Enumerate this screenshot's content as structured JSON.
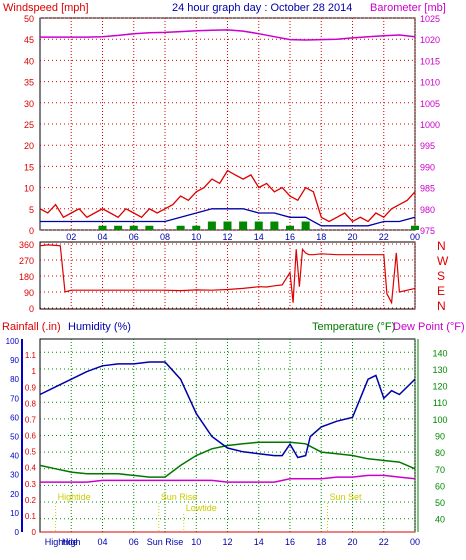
{
  "header": {
    "left_label": "Windspeed [mph]",
    "title": "24 hour graph day : October 28 2014",
    "right_label": "Barometer [mb]"
  },
  "colors": {
    "wind": "#dd0000",
    "wind_avg": "#0000aa",
    "wind_green": "#008800",
    "barometer": "#cc00cc",
    "direction": "#dd0000",
    "humidity": "#0000aa",
    "temperature": "#007700",
    "dewpoint": "#cc00cc",
    "rain": "#dd0000",
    "events": "#cccc00",
    "grid_time": "#dd0000",
    "grid_green": "#008800",
    "axis_blue": "#0000cc",
    "axis_green": "#008800"
  },
  "lower_header": {
    "rainfall_label": "Rainfall (.in)",
    "humidity_label": "Humidity (%)",
    "temperature_label": "Temperature (°F)",
    "dewpoint_label": "Dew Point (°F)"
  },
  "chart_data": [
    {
      "id": "wind",
      "type": "area",
      "x_ticks": [
        "02",
        "04",
        "06",
        "08",
        "10",
        "12",
        "14",
        "16",
        "18",
        "20",
        "22",
        "00"
      ],
      "x_tick_hours": [
        2,
        4,
        6,
        8,
        10,
        12,
        14,
        16,
        18,
        20,
        22,
        24
      ],
      "ylabel": "Windspeed [mph]",
      "ylim": [
        0,
        50
      ],
      "y_ticks": [
        "0",
        "5",
        "10",
        "15",
        "20",
        "25",
        "30",
        "35",
        "40",
        "45",
        "50"
      ],
      "y_tick_values": [
        0,
        5,
        10,
        15,
        20,
        25,
        30,
        35,
        40,
        45,
        50
      ],
      "y2label": "Barometer [mb]",
      "y2lim": [
        975,
        1025
      ],
      "y2_ticks": [
        "975",
        "980",
        "985",
        "990",
        "995",
        "1000",
        "1005",
        "1010",
        "1015",
        "1020",
        "1025"
      ],
      "y2_tick_values": [
        975,
        980,
        985,
        990,
        995,
        1000,
        1005,
        1010,
        1015,
        1020,
        1025
      ],
      "series": [
        {
          "key": "gust",
          "x": [
            0,
            0.5,
            1,
            1.5,
            2,
            2.5,
            3,
            3.5,
            4,
            4.5,
            5,
            5.5,
            6,
            6.5,
            7,
            7.5,
            8,
            8.5,
            9,
            9.5,
            10,
            10.5,
            11,
            11.5,
            12,
            12.5,
            13,
            13.5,
            14,
            14.5,
            15,
            15.5,
            16,
            16.5,
            17,
            17.5,
            18,
            18.5,
            19,
            19.5,
            20,
            20.5,
            21,
            21.5,
            22,
            22.5,
            23,
            23.5,
            24
          ],
          "y": [
            5,
            4,
            6,
            3,
            4,
            5,
            3,
            4,
            5,
            4,
            3,
            5,
            4,
            3,
            5,
            4,
            5,
            6,
            8,
            7,
            9,
            10,
            12,
            11,
            14,
            13,
            12,
            13,
            10,
            11,
            9,
            10,
            8,
            7,
            10,
            9,
            3,
            2,
            3,
            4,
            2,
            3,
            2,
            4,
            3,
            5,
            6,
            7,
            9
          ]
        },
        {
          "key": "average",
          "x": [
            0,
            1,
            2,
            3,
            4,
            5,
            6,
            7,
            8,
            9,
            10,
            11,
            12,
            13,
            14,
            15,
            16,
            17,
            18,
            19,
            20,
            21,
            22,
            23,
            24
          ],
          "y": [
            2,
            2,
            2,
            2,
            2,
            2,
            2,
            2,
            2,
            3,
            4,
            5,
            5,
            5,
            4,
            4,
            3,
            3,
            1,
            1,
            1,
            1,
            2,
            2,
            3
          ]
        },
        {
          "key": "wind_green",
          "x": [
            0,
            1,
            2,
            3,
            4,
            5,
            6,
            7,
            8,
            9,
            10,
            11,
            12,
            13,
            14,
            15,
            16,
            17,
            18,
            19,
            20,
            21,
            22,
            23,
            24
          ],
          "y": [
            0,
            0,
            0,
            0,
            1,
            1,
            1,
            1,
            0,
            1,
            1,
            2,
            2,
            2,
            2,
            2,
            1,
            2,
            0,
            0,
            0,
            0,
            0,
            0,
            1
          ]
        },
        {
          "key": "barometer",
          "x": [
            0,
            1,
            2,
            3,
            4,
            5,
            6,
            7,
            8,
            9,
            10,
            11,
            12,
            13,
            14,
            15,
            16,
            17,
            18,
            19,
            20,
            21,
            22,
            23,
            24
          ],
          "y": [
            1020.5,
            1020.5,
            1020.5,
            1020.5,
            1020.6,
            1020.9,
            1021.3,
            1021.5,
            1021.6,
            1021.8,
            1022.0,
            1022.1,
            1022.2,
            1021.9,
            1021.3,
            1020.6,
            1019.9,
            1019.8,
            1019.9,
            1020.0,
            1020.3,
            1020.6,
            1020.8,
            1021.0,
            1020.6
          ]
        }
      ]
    },
    {
      "id": "direction",
      "type": "line",
      "x_tick_hours": [
        2,
        4,
        6,
        8,
        10,
        12,
        14,
        16,
        18,
        20,
        22,
        24
      ],
      "ylim": [
        0,
        360
      ],
      "y_ticks": [
        "360",
        "270",
        "180",
        "90",
        "0"
      ],
      "y_tick_values": [
        360,
        270,
        180,
        90,
        0
      ],
      "compass": [
        "N",
        "W",
        "S",
        "E",
        "N"
      ],
      "series": [
        {
          "key": "direction",
          "x": [
            0,
            0.5,
            1,
            1.3,
            1.6,
            1.8,
            2,
            3,
            4,
            5,
            6,
            7,
            8,
            9,
            10,
            11,
            12,
            13,
            14,
            14.5,
            15,
            15.5,
            16,
            16.2,
            16.4,
            16.6,
            16.8,
            17,
            17.2,
            17.5,
            18,
            19,
            20,
            21,
            22,
            22.2,
            22.5,
            22.8,
            23,
            23.5,
            24
          ],
          "y": [
            350,
            355,
            352,
            350,
            90,
            95,
            100,
            100,
            100,
            100,
            100,
            100,
            100,
            98,
            102,
            100,
            104,
            110,
            120,
            118,
            125,
            130,
            200,
            30,
            330,
            120,
            330,
            310,
            300,
            300,
            305,
            300,
            300,
            300,
            300,
            80,
            30,
            310,
            90,
            100,
            110
          ]
        }
      ]
    },
    {
      "id": "temperature_humidity",
      "type": "line",
      "x_ticks": [
        "High",
        "04",
        "06",
        "Sun Rise",
        "10",
        "12",
        "14",
        "16",
        "18",
        "20",
        "22",
        "00"
      ],
      "x_tick_hours": [
        2,
        4,
        6,
        8,
        10,
        12,
        14,
        16,
        18,
        20,
        22,
        24
      ],
      "ylabel": "Humidity (%)",
      "ylim": [
        0,
        100
      ],
      "y_ticks": [
        "0",
        "10",
        "20",
        "30",
        "40",
        "50",
        "60",
        "70",
        "80",
        "90",
        "100"
      ],
      "y_tick_values": [
        0,
        10,
        20,
        30,
        40,
        50,
        60,
        70,
        80,
        90,
        100
      ],
      "rain_ylim": [
        0,
        1.2
      ],
      "rain_ticks": [
        "0",
        "0.1",
        "0.2",
        "0.3",
        "0.4",
        "0.5",
        "0.6",
        "0.7",
        "0.8",
        "0.9",
        "1",
        "1.1"
      ],
      "rain_tick_values": [
        0,
        0.1,
        0.2,
        0.3,
        0.4,
        0.5,
        0.6,
        0.7,
        0.8,
        0.9,
        1.0,
        1.1
      ],
      "y2label": "Temperature (°F)",
      "y2lim": [
        32,
        148
      ],
      "y2_ticks": [
        "40",
        "50",
        "60",
        "70",
        "80",
        "90",
        "100",
        "110",
        "120",
        "130",
        "140"
      ],
      "y2_tick_values": [
        40,
        50,
        60,
        70,
        80,
        90,
        100,
        110,
        120,
        130,
        140
      ],
      "events": [
        {
          "label": "Hightide",
          "hour": 1.0,
          "level": "upper"
        },
        {
          "label": "Sun Rise",
          "hour": 7.6,
          "level": "upper"
        },
        {
          "label": "Lowtide",
          "hour": 9.2,
          "level": "middle"
        },
        {
          "label": "Sun Set",
          "hour": 18.4,
          "level": "upper"
        },
        {
          "label": "Hightide",
          "hour": 1.2,
          "level": "bottom"
        }
      ],
      "series": [
        {
          "key": "humidity",
          "x": [
            0,
            1,
            2,
            3,
            4,
            5,
            6,
            7,
            8,
            9,
            10,
            11,
            12,
            13,
            14,
            15,
            15.5,
            16,
            16.5,
            17,
            17.3,
            18,
            19,
            20,
            20.5,
            21,
            21.5,
            22,
            22.5,
            23,
            24
          ],
          "y": [
            72,
            76,
            80,
            84,
            87,
            88,
            88,
            89,
            89,
            80,
            62,
            50,
            44,
            42,
            41,
            40,
            40,
            46,
            39,
            40,
            50,
            55,
            58,
            60,
            70,
            80,
            82,
            70,
            74,
            72,
            80
          ]
        },
        {
          "key": "temperature",
          "x": [
            0,
            1,
            2,
            3,
            4,
            5,
            6,
            7,
            8,
            9,
            10,
            11,
            12,
            13,
            14,
            15,
            16,
            17,
            18,
            19,
            20,
            21,
            22,
            23,
            24
          ],
          "y": [
            72,
            70,
            68,
            67,
            67,
            67,
            66,
            65,
            65,
            72,
            78,
            82,
            84,
            85,
            86,
            86,
            86,
            85,
            80,
            79,
            78,
            76,
            75,
            74,
            70
          ]
        },
        {
          "key": "dewpoint",
          "x": [
            0,
            1,
            2,
            3,
            4,
            5,
            6,
            7,
            8,
            9,
            10,
            11,
            12,
            13,
            14,
            15,
            16,
            17,
            18,
            19,
            20,
            21,
            22,
            23,
            24
          ],
          "y": [
            62,
            62,
            62,
            62,
            63,
            63,
            63,
            63,
            63,
            63,
            63,
            63,
            62,
            62,
            62,
            62,
            64,
            64,
            64,
            65,
            65,
            66,
            66,
            65,
            64
          ]
        },
        {
          "key": "rain",
          "x": [
            0,
            24
          ],
          "y": [
            0.0,
            0.0
          ]
        }
      ]
    }
  ]
}
